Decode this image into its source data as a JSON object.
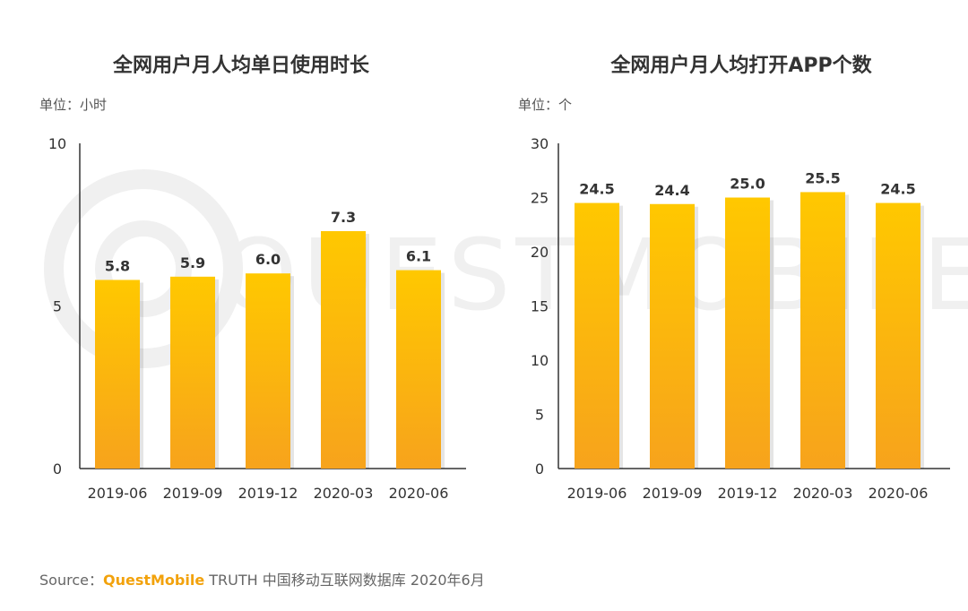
{
  "colors": {
    "bar_top": "#FFC800",
    "bar_bottom": "#F7A31C",
    "axis": "#333333",
    "text": "#333333",
    "brand": "#F2A20C",
    "watermark": "#F0F0F0"
  },
  "watermark_text": "QUESTMOBILE",
  "chart_data": [
    {
      "type": "bar",
      "title": "全网用户月人均单日使用时长",
      "unit_label": "单位：小时",
      "categories": [
        "2019-06",
        "2019-09",
        "2019-12",
        "2020-03",
        "2020-06"
      ],
      "values": [
        5.8,
        5.9,
        6.0,
        7.3,
        6.1
      ],
      "value_labels": [
        "5.8",
        "5.9",
        "6.0",
        "7.3",
        "6.1"
      ],
      "ylim": [
        0,
        10
      ],
      "yticks": [
        0,
        5,
        10
      ],
      "grid": false
    },
    {
      "type": "bar",
      "title": "全网用户月人均打开APP个数",
      "unit_label": "单位：个",
      "categories": [
        "2019-06",
        "2019-09",
        "2019-12",
        "2020-03",
        "2020-06"
      ],
      "values": [
        24.5,
        24.4,
        25.0,
        25.5,
        24.5
      ],
      "value_labels": [
        "24.5",
        "24.4",
        "25.0",
        "25.5",
        "24.5"
      ],
      "ylim": [
        0,
        30
      ],
      "yticks": [
        0,
        5,
        10,
        15,
        20,
        25,
        30
      ],
      "grid": false
    }
  ],
  "source": {
    "prefix": "Source：",
    "brand": "QuestMobile",
    "suffix": " TRUTH 中国移动互联网数据库 2020年6月"
  }
}
